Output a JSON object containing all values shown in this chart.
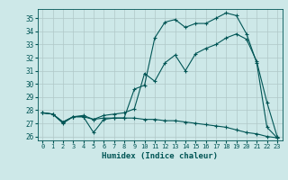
{
  "xlabel": "Humidex (Indice chaleur)",
  "bg_color": "#cde8e8",
  "grid_color": "#b0c8c8",
  "line_color": "#005555",
  "xlim": [
    -0.5,
    23.5
  ],
  "ylim": [
    25.7,
    35.7
  ],
  "xticks": [
    0,
    1,
    2,
    3,
    4,
    5,
    6,
    7,
    8,
    9,
    10,
    11,
    12,
    13,
    14,
    15,
    16,
    17,
    18,
    19,
    20,
    21,
    22,
    23
  ],
  "yticks": [
    26,
    27,
    28,
    29,
    30,
    31,
    32,
    33,
    34,
    35
  ],
  "line1_x": [
    0,
    1,
    2,
    3,
    4,
    5,
    6,
    7,
    8,
    9,
    10,
    11,
    12,
    13,
    14,
    15,
    16,
    17,
    18,
    19,
    20,
    21,
    22,
    23
  ],
  "line1_y": [
    27.8,
    27.7,
    27.0,
    27.5,
    27.5,
    26.3,
    27.3,
    27.4,
    27.4,
    29.6,
    29.9,
    33.5,
    34.7,
    34.9,
    34.3,
    34.6,
    34.6,
    35.0,
    35.4,
    35.2,
    33.8,
    31.6,
    26.7,
    25.9
  ],
  "line2_x": [
    0,
    1,
    2,
    3,
    4,
    5,
    6,
    7,
    8,
    9,
    10,
    11,
    12,
    13,
    14,
    15,
    16,
    17,
    18,
    19,
    20,
    21,
    22,
    23
  ],
  "line2_y": [
    27.8,
    27.7,
    27.1,
    27.5,
    27.5,
    27.3,
    27.6,
    27.7,
    27.8,
    28.1,
    30.8,
    30.2,
    31.6,
    32.2,
    31.0,
    32.3,
    32.7,
    33.0,
    33.5,
    33.8,
    33.4,
    31.7,
    28.6,
    26.0
  ],
  "line3_x": [
    0,
    1,
    2,
    3,
    4,
    5,
    6,
    7,
    8,
    9,
    10,
    11,
    12,
    13,
    14,
    15,
    16,
    17,
    18,
    19,
    20,
    21,
    22,
    23
  ],
  "line3_y": [
    27.8,
    27.7,
    27.1,
    27.5,
    27.6,
    27.3,
    27.4,
    27.4,
    27.4,
    27.4,
    27.3,
    27.3,
    27.2,
    27.2,
    27.1,
    27.0,
    26.9,
    26.8,
    26.7,
    26.5,
    26.3,
    26.2,
    26.0,
    25.9
  ]
}
